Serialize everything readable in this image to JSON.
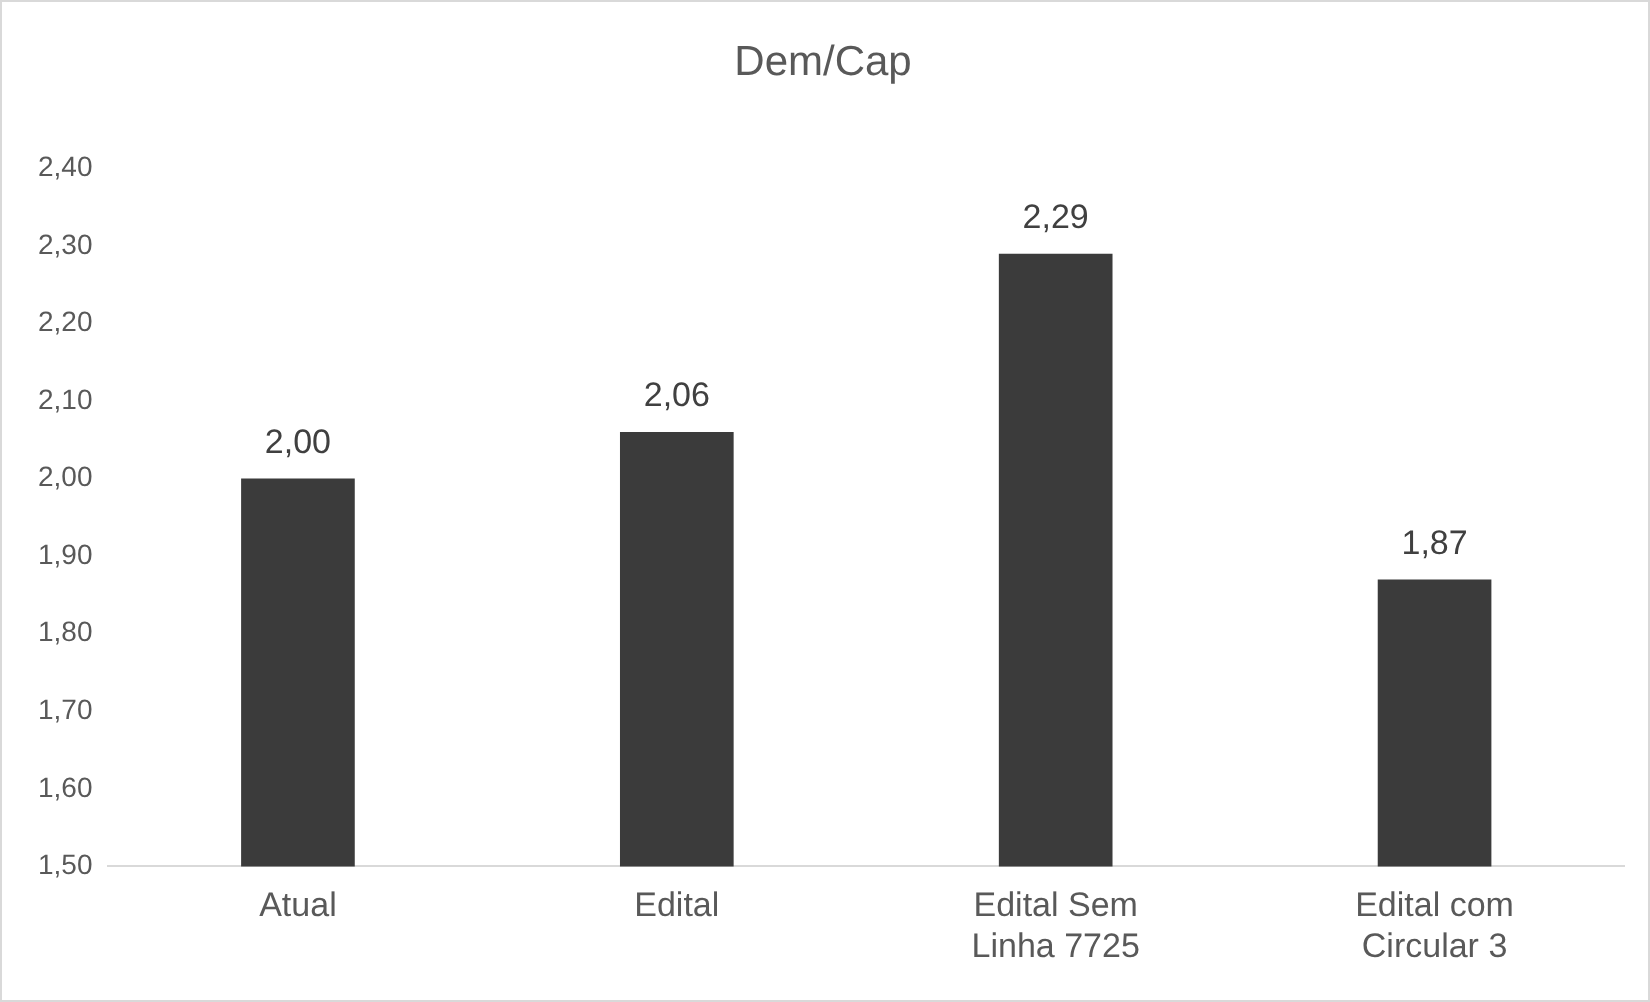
{
  "chart_data": {
    "type": "bar",
    "title": "Dem/Cap",
    "categories": [
      "Atual",
      "Edital",
      "Edital Sem Linha 7725",
      "Edital com Circular 3"
    ],
    "values": [
      2.0,
      2.06,
      2.29,
      1.87
    ],
    "color": "#3b3b3b",
    "value_labels": [
      "2,00",
      "2,06",
      "2,29",
      "1,87"
    ],
    "ylim": [
      1.5,
      2.4
    ],
    "yticks": [
      {
        "value": 1.5,
        "label": "1,50"
      },
      {
        "value": 1.6,
        "label": "1,60"
      },
      {
        "value": 1.7,
        "label": "1,70"
      },
      {
        "value": 1.8,
        "label": "1,80"
      },
      {
        "value": 1.9,
        "label": "1,90"
      },
      {
        "value": 2.0,
        "label": "2,00"
      },
      {
        "value": 2.1,
        "label": "2,10"
      },
      {
        "value": 2.2,
        "label": "2,20"
      },
      {
        "value": 2.3,
        "label": "2,30"
      },
      {
        "value": 2.4,
        "label": "2,40"
      }
    ],
    "grid": false,
    "legend": false
  }
}
